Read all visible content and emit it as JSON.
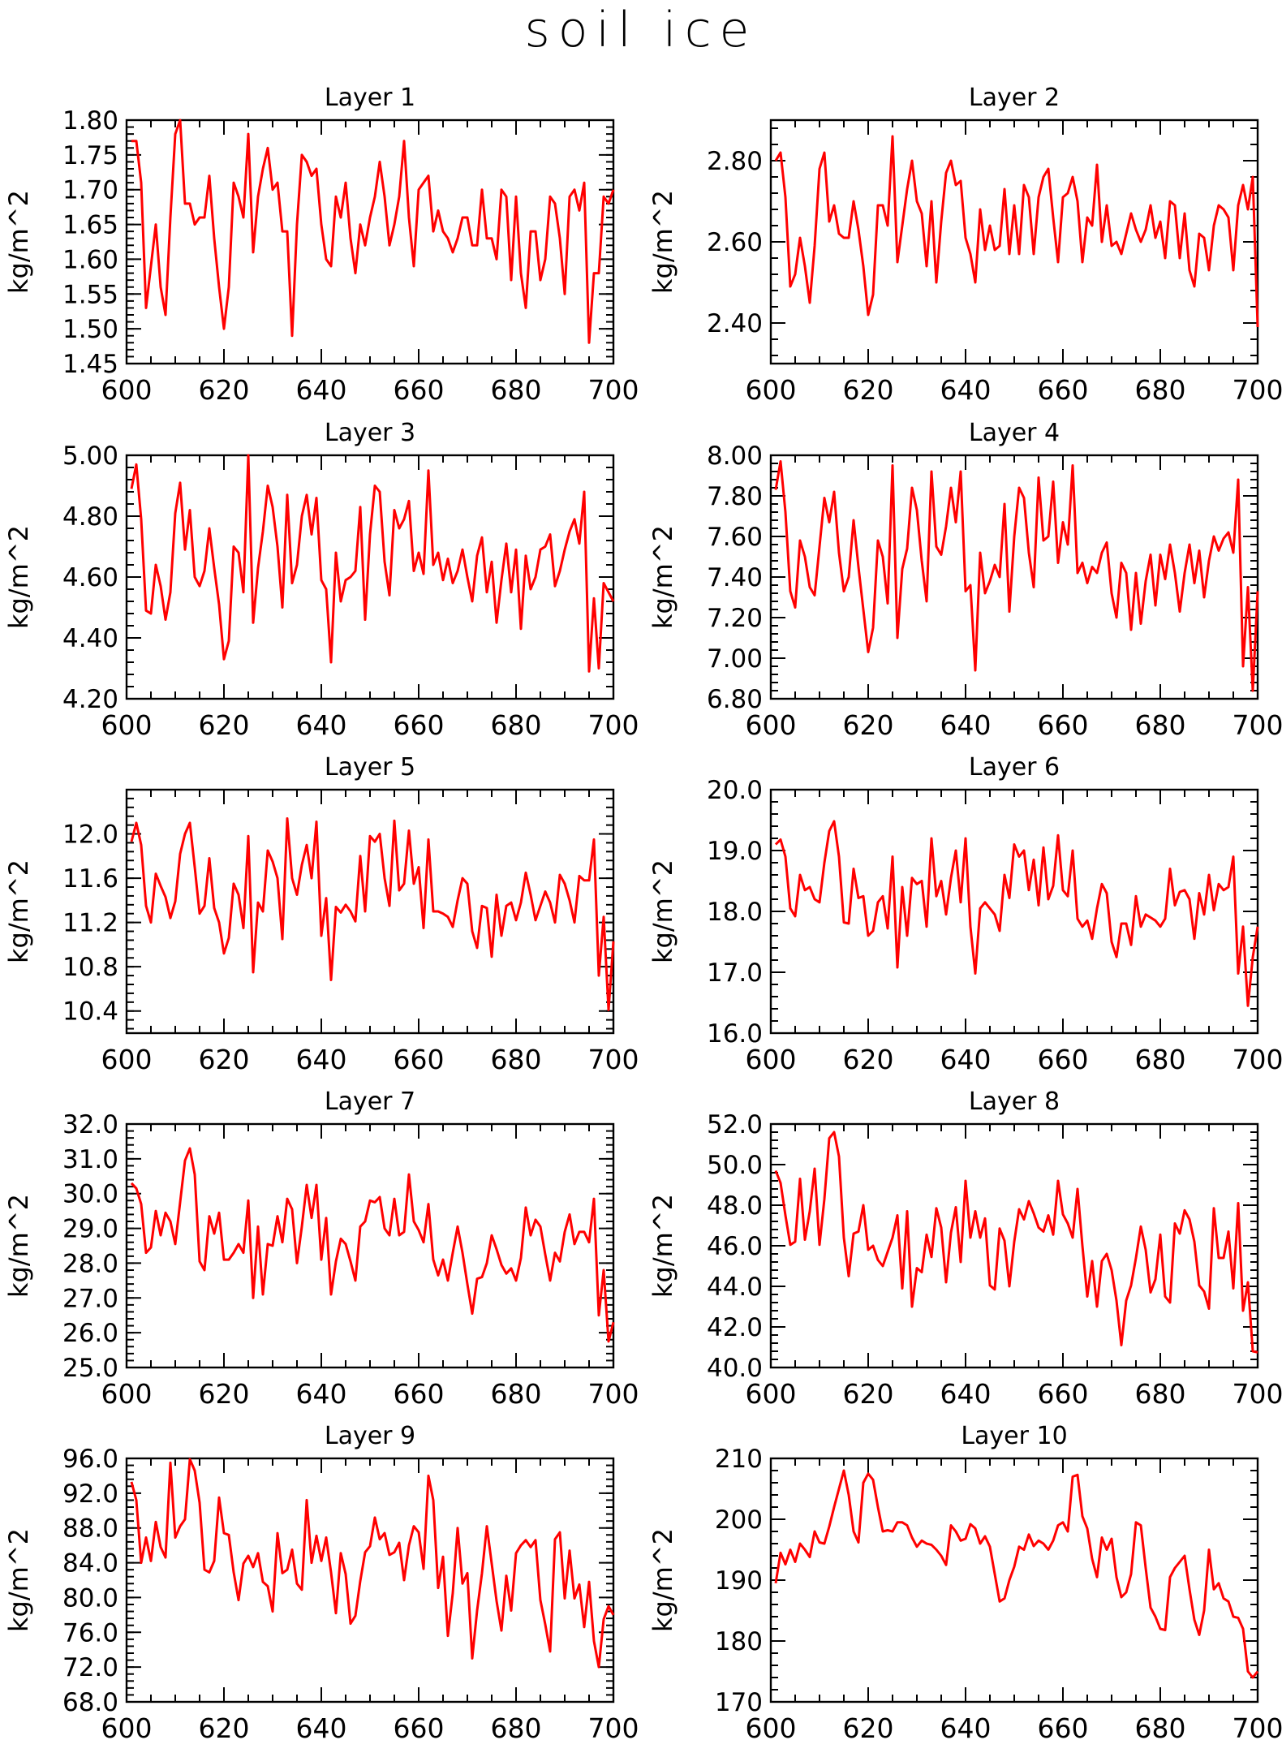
{
  "title": "soil ice",
  "colors": {
    "line": "#ff0000",
    "axis": "#000000",
    "background": "#ffffff"
  },
  "chart_data": [
    {
      "type": "line",
      "title": "Layer 1",
      "xlabel": "",
      "ylabel": "kg/m^2",
      "xlim": [
        600,
        700
      ],
      "ylim": [
        1.45,
        1.8
      ],
      "xticks": [
        "600",
        "620",
        "640",
        "660",
        "680",
        "700"
      ],
      "yticks": [
        "1.45",
        "1.50",
        "1.55",
        "1.60",
        "1.65",
        "1.70",
        "1.75",
        "1.80"
      ],
      "grid": false,
      "x_start": 601,
      "values": [
        1.77,
        1.77,
        1.71,
        1.53,
        1.59,
        1.65,
        1.56,
        1.52,
        1.66,
        1.78,
        1.8,
        1.68,
        1.68,
        1.65,
        1.66,
        1.66,
        1.72,
        1.63,
        1.56,
        1.5,
        1.56,
        1.71,
        1.69,
        1.66,
        1.78,
        1.61,
        1.69,
        1.73,
        1.76,
        1.7,
        1.71,
        1.64,
        1.64,
        1.49,
        1.65,
        1.75,
        1.74,
        1.72,
        1.73,
        1.65,
        1.6,
        1.59,
        1.69,
        1.66,
        1.71,
        1.63,
        1.58,
        1.65,
        1.62,
        1.66,
        1.69,
        1.74,
        1.69,
        1.62,
        1.65,
        1.69,
        1.77,
        1.66,
        1.59,
        1.7,
        1.71,
        1.72,
        1.64,
        1.67,
        1.64,
        1.63,
        1.61,
        1.63,
        1.66,
        1.66,
        1.62,
        1.62,
        1.7,
        1.63,
        1.63,
        1.6,
        1.7,
        1.69,
        1.57,
        1.69,
        1.58,
        1.53,
        1.64,
        1.64,
        1.57,
        1.6,
        1.69,
        1.68,
        1.63,
        1.55,
        1.69,
        1.7,
        1.67,
        1.71,
        1.48,
        1.58,
        1.58,
        1.69,
        1.68,
        1.7
      ]
    },
    {
      "type": "line",
      "title": "Layer 2",
      "xlabel": "",
      "ylabel": "kg/m^2",
      "xlim": [
        600,
        700
      ],
      "ylim": [
        2.3,
        2.9
      ],
      "xticks": [
        "600",
        "620",
        "640",
        "660",
        "680",
        "700"
      ],
      "yticks": [
        "2.40",
        "2.60",
        "2.80"
      ],
      "grid": false,
      "x_start": 601,
      "values": [
        2.8,
        2.82,
        2.71,
        2.49,
        2.52,
        2.61,
        2.54,
        2.45,
        2.59,
        2.78,
        2.82,
        2.65,
        2.69,
        2.62,
        2.61,
        2.61,
        2.7,
        2.63,
        2.54,
        2.42,
        2.47,
        2.69,
        2.69,
        2.64,
        2.86,
        2.55,
        2.64,
        2.73,
        2.8,
        2.7,
        2.67,
        2.54,
        2.7,
        2.5,
        2.65,
        2.77,
        2.8,
        2.74,
        2.75,
        2.61,
        2.57,
        2.5,
        2.68,
        2.58,
        2.64,
        2.58,
        2.59,
        2.73,
        2.57,
        2.69,
        2.57,
        2.74,
        2.71,
        2.57,
        2.71,
        2.76,
        2.78,
        2.66,
        2.55,
        2.71,
        2.72,
        2.76,
        2.7,
        2.55,
        2.66,
        2.64,
        2.79,
        2.6,
        2.69,
        2.59,
        2.6,
        2.57,
        2.62,
        2.67,
        2.63,
        2.6,
        2.63,
        2.69,
        2.61,
        2.65,
        2.56,
        2.7,
        2.69,
        2.56,
        2.67,
        2.53,
        2.49,
        2.62,
        2.61,
        2.53,
        2.64,
        2.69,
        2.68,
        2.66,
        2.53,
        2.69,
        2.74,
        2.68,
        2.76,
        2.39
      ]
    },
    {
      "type": "line",
      "title": "Layer 3",
      "xlabel": "",
      "ylabel": "kg/m^2",
      "xlim": [
        600,
        700
      ],
      "ylim": [
        4.2,
        5.0
      ],
      "xticks": [
        "600",
        "620",
        "640",
        "660",
        "680",
        "700"
      ],
      "yticks": [
        "4.20",
        "4.40",
        "4.60",
        "4.80",
        "5.00"
      ],
      "grid": false,
      "x_start": 601,
      "values": [
        4.89,
        4.97,
        4.79,
        4.49,
        4.48,
        4.64,
        4.57,
        4.46,
        4.55,
        4.81,
        4.91,
        4.69,
        4.82,
        4.6,
        4.57,
        4.62,
        4.76,
        4.63,
        4.51,
        4.33,
        4.39,
        4.7,
        4.68,
        4.55,
        5.0,
        4.45,
        4.63,
        4.75,
        4.9,
        4.83,
        4.7,
        4.5,
        4.87,
        4.58,
        4.64,
        4.8,
        4.87,
        4.74,
        4.86,
        4.59,
        4.56,
        4.32,
        4.68,
        4.52,
        4.59,
        4.6,
        4.62,
        4.83,
        4.46,
        4.74,
        4.9,
        4.88,
        4.65,
        4.54,
        4.82,
        4.76,
        4.79,
        4.85,
        4.62,
        4.68,
        4.61,
        4.95,
        4.64,
        4.68,
        4.59,
        4.66,
        4.58,
        4.62,
        4.69,
        4.6,
        4.52,
        4.67,
        4.73,
        4.55,
        4.65,
        4.45,
        4.59,
        4.71,
        4.55,
        4.69,
        4.43,
        4.67,
        4.56,
        4.6,
        4.69,
        4.7,
        4.74,
        4.57,
        4.62,
        4.69,
        4.75,
        4.79,
        4.71,
        4.88,
        4.29,
        4.53,
        4.3,
        4.58,
        4.55,
        4.52
      ]
    },
    {
      "type": "line",
      "title": "Layer 4",
      "xlabel": "",
      "ylabel": "kg/m^2",
      "xlim": [
        600,
        700
      ],
      "ylim": [
        6.8,
        8.0
      ],
      "xticks": [
        "600",
        "620",
        "640",
        "660",
        "680",
        "700"
      ],
      "yticks": [
        "6.80",
        "7.00",
        "7.20",
        "7.40",
        "7.60",
        "7.80",
        "8.00"
      ],
      "grid": false,
      "x_start": 601,
      "values": [
        7.83,
        7.97,
        7.72,
        7.33,
        7.25,
        7.58,
        7.5,
        7.35,
        7.31,
        7.55,
        7.79,
        7.67,
        7.82,
        7.52,
        7.33,
        7.4,
        7.68,
        7.45,
        7.24,
        7.03,
        7.15,
        7.58,
        7.5,
        7.27,
        7.95,
        7.1,
        7.44,
        7.54,
        7.84,
        7.73,
        7.48,
        7.28,
        7.92,
        7.55,
        7.51,
        7.65,
        7.84,
        7.67,
        7.92,
        7.33,
        7.36,
        6.94,
        7.52,
        7.32,
        7.38,
        7.46,
        7.4,
        7.76,
        7.23,
        7.6,
        7.84,
        7.79,
        7.52,
        7.35,
        7.89,
        7.58,
        7.6,
        7.87,
        7.47,
        7.67,
        7.56,
        7.95,
        7.42,
        7.47,
        7.37,
        7.45,
        7.42,
        7.52,
        7.57,
        7.32,
        7.2,
        7.47,
        7.42,
        7.14,
        7.42,
        7.17,
        7.38,
        7.51,
        7.26,
        7.51,
        7.39,
        7.56,
        7.42,
        7.23,
        7.42,
        7.56,
        7.37,
        7.53,
        7.3,
        7.48,
        7.6,
        7.53,
        7.59,
        7.62,
        7.52,
        7.88,
        6.96,
        7.35,
        6.84,
        7.33
      ]
    },
    {
      "type": "line",
      "title": "Layer 5",
      "xlabel": "",
      "ylabel": "kg/m^2",
      "xlim": [
        600,
        700
      ],
      "ylim": [
        10.2,
        12.4
      ],
      "xticks": [
        "600",
        "620",
        "640",
        "660",
        "680",
        "700"
      ],
      "yticks": [
        "10.4",
        "10.8",
        "11.2",
        "11.6",
        "12.0"
      ],
      "grid": false,
      "x_start": 601,
      "values": [
        11.93,
        12.1,
        11.9,
        11.35,
        11.2,
        11.64,
        11.53,
        11.43,
        11.24,
        11.39,
        11.82,
        12.0,
        12.1,
        11.7,
        11.28,
        11.35,
        11.78,
        11.33,
        11.2,
        10.92,
        11.06,
        11.55,
        11.45,
        11.15,
        11.98,
        10.75,
        11.38,
        11.3,
        11.85,
        11.75,
        11.6,
        11.05,
        12.14,
        11.6,
        11.45,
        11.72,
        11.9,
        11.6,
        12.11,
        11.08,
        11.42,
        10.68,
        11.34,
        11.29,
        11.36,
        11.3,
        11.21,
        11.8,
        11.3,
        11.98,
        11.93,
        12.0,
        11.6,
        11.35,
        12.12,
        11.49,
        11.55,
        12.03,
        11.55,
        11.7,
        11.15,
        11.95,
        11.3,
        11.3,
        11.28,
        11.25,
        11.16,
        11.4,
        11.6,
        11.55,
        11.12,
        10.97,
        11.35,
        11.33,
        10.89,
        11.45,
        11.08,
        11.35,
        11.38,
        11.22,
        11.38,
        11.65,
        11.45,
        11.22,
        11.35,
        11.48,
        11.38,
        11.2,
        11.63,
        11.55,
        11.4,
        11.2,
        11.62,
        11.58,
        11.58,
        11.95,
        10.72,
        11.25,
        10.41,
        11.03
      ]
    },
    {
      "type": "line",
      "title": "Layer 6",
      "xlabel": "",
      "ylabel": "kg/m^2",
      "xlim": [
        600,
        700
      ],
      "ylim": [
        16.0,
        20.0
      ],
      "xticks": [
        "600",
        "620",
        "640",
        "660",
        "680",
        "700"
      ],
      "yticks": [
        "16.0",
        "17.0",
        "18.0",
        "19.0",
        "20.0"
      ],
      "grid": false,
      "x_start": 601,
      "values": [
        19.1,
        19.18,
        18.9,
        18.05,
        17.92,
        18.6,
        18.35,
        18.4,
        18.2,
        18.15,
        18.8,
        19.32,
        19.48,
        18.9,
        17.82,
        17.8,
        18.7,
        18.22,
        18.25,
        17.6,
        17.68,
        18.15,
        18.25,
        17.72,
        18.9,
        17.08,
        18.4,
        17.6,
        18.55,
        18.45,
        18.5,
        17.75,
        19.2,
        18.25,
        18.5,
        17.95,
        18.55,
        19.0,
        18.15,
        19.2,
        17.75,
        16.98,
        18.05,
        18.15,
        18.05,
        17.95,
        17.68,
        18.6,
        18.22,
        19.1,
        18.9,
        19.0,
        18.35,
        18.85,
        18.1,
        19.05,
        18.2,
        18.42,
        19.25,
        18.35,
        18.25,
        19.0,
        17.88,
        17.75,
        17.85,
        17.55,
        18.05,
        18.45,
        18.3,
        17.5,
        17.25,
        17.8,
        17.8,
        17.45,
        18.25,
        17.75,
        17.95,
        17.9,
        17.85,
        17.75,
        17.88,
        18.7,
        18.1,
        18.32,
        18.35,
        18.2,
        17.55,
        18.3,
        17.95,
        18.6,
        18.02,
        18.45,
        18.35,
        18.4,
        18.9,
        16.98,
        17.75,
        16.45,
        17.25,
        17.75
      ]
    },
    {
      "type": "line",
      "title": "Layer 7",
      "xlabel": "",
      "ylabel": "kg/m^2",
      "xlim": [
        600,
        700
      ],
      "ylim": [
        25.0,
        32.0
      ],
      "xticks": [
        "600",
        "620",
        "640",
        "660",
        "680",
        "700"
      ],
      "yticks": [
        "25.0",
        "26.0",
        "27.0",
        "28.0",
        "29.0",
        "30.0",
        "31.0",
        "32.0"
      ],
      "grid": false,
      "x_start": 601,
      "values": [
        30.3,
        30.15,
        29.7,
        28.3,
        28.45,
        29.5,
        28.8,
        29.45,
        29.2,
        28.55,
        29.75,
        30.95,
        31.3,
        30.55,
        28.05,
        27.8,
        29.35,
        28.85,
        29.45,
        28.1,
        28.1,
        28.3,
        28.55,
        28.3,
        29.8,
        27.0,
        29.05,
        27.1,
        28.55,
        28.5,
        29.35,
        28.6,
        29.85,
        29.55,
        28.0,
        29.05,
        30.25,
        29.3,
        30.25,
        28.1,
        29.3,
        27.1,
        28.05,
        28.7,
        28.55,
        28.05,
        27.5,
        29.05,
        29.2,
        29.8,
        29.75,
        29.9,
        29.0,
        28.8,
        29.85,
        28.8,
        28.9,
        30.55,
        29.2,
        28.95,
        28.6,
        29.7,
        28.1,
        27.65,
        28.1,
        27.5,
        28.3,
        29.05,
        28.3,
        27.4,
        26.55,
        27.55,
        27.6,
        28.0,
        28.8,
        28.4,
        27.95,
        27.7,
        27.85,
        27.5,
        28.15,
        29.6,
        28.8,
        29.25,
        29.05,
        28.25,
        27.5,
        28.3,
        28.05,
        28.9,
        29.4,
        28.55,
        28.9,
        28.9,
        28.6,
        29.85,
        26.5,
        27.8,
        25.75,
        26.3
      ]
    },
    {
      "type": "line",
      "title": "Layer 8",
      "xlabel": "",
      "ylabel": "kg/m^2",
      "xlim": [
        600,
        700
      ],
      "ylim": [
        40.0,
        52.0
      ],
      "xticks": [
        "600",
        "620",
        "640",
        "660",
        "680",
        "700"
      ],
      "yticks": [
        "40.0",
        "42.0",
        "44.0",
        "46.0",
        "48.0",
        "50.0",
        "52.0"
      ],
      "grid": false,
      "x_start": 601,
      "values": [
        49.7,
        49.1,
        47.5,
        46.05,
        46.2,
        49.3,
        46.3,
        47.7,
        49.8,
        46.05,
        48.3,
        51.3,
        51.6,
        50.4,
        46.4,
        44.5,
        46.6,
        46.7,
        48.0,
        45.8,
        46.0,
        45.3,
        45.0,
        45.7,
        46.4,
        47.5,
        43.9,
        47.7,
        43.0,
        44.9,
        44.7,
        46.55,
        45.45,
        47.85,
        46.9,
        44.2,
        46.65,
        47.9,
        45.2,
        49.2,
        46.4,
        47.7,
        46.4,
        47.35,
        44.05,
        43.85,
        46.85,
        46.25,
        44.0,
        46.2,
        47.8,
        47.3,
        48.2,
        47.6,
        46.9,
        46.7,
        47.5,
        46.55,
        49.2,
        47.55,
        47.1,
        46.4,
        48.8,
        46.0,
        43.5,
        45.25,
        43.0,
        45.25,
        45.6,
        44.8,
        43.3,
        41.1,
        43.3,
        44.05,
        45.4,
        46.95,
        45.8,
        43.7,
        44.35,
        46.55,
        43.5,
        43.2,
        47.1,
        46.6,
        47.75,
        47.3,
        46.2,
        44.05,
        43.75,
        42.9,
        47.85,
        45.4,
        45.4,
        46.7,
        43.9,
        48.1,
        42.8,
        44.2,
        40.8,
        40.75
      ]
    },
    {
      "type": "line",
      "title": "Layer 9",
      "xlabel": "",
      "ylabel": "kg/m^2",
      "xlim": [
        600,
        700
      ],
      "ylim": [
        68.0,
        96.0
      ],
      "xticks": [
        "600",
        "620",
        "640",
        "660",
        "680",
        "700"
      ],
      "yticks": [
        "68.0",
        "72.0",
        "76.0",
        "80.0",
        "84.0",
        "88.0",
        "92.0",
        "96.0"
      ],
      "grid": false,
      "x_start": 601,
      "values": [
        93.3,
        91.2,
        84.0,
        86.9,
        84.2,
        88.7,
        85.8,
        84.6,
        95.5,
        86.9,
        88.2,
        89.0,
        95.9,
        94.6,
        90.9,
        83.2,
        82.9,
        84.2,
        91.5,
        87.4,
        87.2,
        82.9,
        79.7,
        83.9,
        84.8,
        83.5,
        85.1,
        81.8,
        81.3,
        78.4,
        87.4,
        82.8,
        83.2,
        85.5,
        81.6,
        80.9,
        91.2,
        84.0,
        87.1,
        84.2,
        86.9,
        82.9,
        78.2,
        85.1,
        82.7,
        77.0,
        77.9,
        81.9,
        85.2,
        85.9,
        89.2,
        86.7,
        87.4,
        84.9,
        85.2,
        86.3,
        82.0,
        86.0,
        88.2,
        87.5,
        83.3,
        94.0,
        91.2,
        81.1,
        84.7,
        75.6,
        80.5,
        88.0,
        81.6,
        82.8,
        73.0,
        78.5,
        82.8,
        88.2,
        83.9,
        79.6,
        76.2,
        82.5,
        78.5,
        85.1,
        86.0,
        86.6,
        85.8,
        86.6,
        79.7,
        76.9,
        73.8,
        86.7,
        87.5,
        79.9,
        85.4,
        79.9,
        81.5,
        76.6,
        81.8,
        75.0,
        72.0,
        77.5,
        79.0,
        78.0
      ]
    },
    {
      "type": "line",
      "title": "Layer 10",
      "xlabel": "",
      "ylabel": "kg/m^2",
      "xlim": [
        600,
        700
      ],
      "ylim": [
        170,
        210
      ],
      "xticks": [
        "600",
        "620",
        "640",
        "660",
        "680",
        "700"
      ],
      "yticks": [
        "170",
        "180",
        "190",
        "200",
        "210"
      ],
      "grid": false,
      "x_start": 601,
      "values": [
        189.5,
        194.5,
        192.6,
        195.0,
        193.0,
        196.0,
        195.0,
        193.8,
        198.0,
        196.2,
        196.0,
        198.8,
        202.0,
        205.0,
        208.0,
        204.0,
        198.0,
        196.2,
        206.0,
        207.5,
        206.5,
        202.0,
        198.0,
        198.2,
        198.0,
        199.5,
        199.5,
        199.0,
        197.0,
        195.5,
        196.5,
        196.0,
        195.8,
        195.0,
        194.0,
        192.5,
        199.0,
        198.0,
        196.5,
        196.8,
        199.2,
        198.5,
        196.0,
        197.2,
        195.5,
        191.0,
        186.5,
        187.0,
        190.0,
        192.2,
        195.5,
        195.0,
        197.5,
        195.6,
        196.5,
        196.0,
        195.0,
        196.5,
        199.0,
        199.5,
        198.0,
        207.0,
        207.3,
        200.5,
        198.5,
        193.5,
        190.5,
        197.0,
        195.0,
        196.8,
        190.5,
        187.2,
        188.0,
        191.0,
        199.5,
        199.0,
        192.0,
        185.5,
        184.0,
        182.0,
        181.8,
        190.5,
        192.0,
        193.0,
        194.0,
        188.5,
        183.5,
        181.0,
        185.0,
        195.0,
        188.5,
        189.5,
        187.0,
        186.5,
        184.0,
        183.8,
        182.0,
        175.0,
        174.0,
        175.0
      ]
    }
  ]
}
